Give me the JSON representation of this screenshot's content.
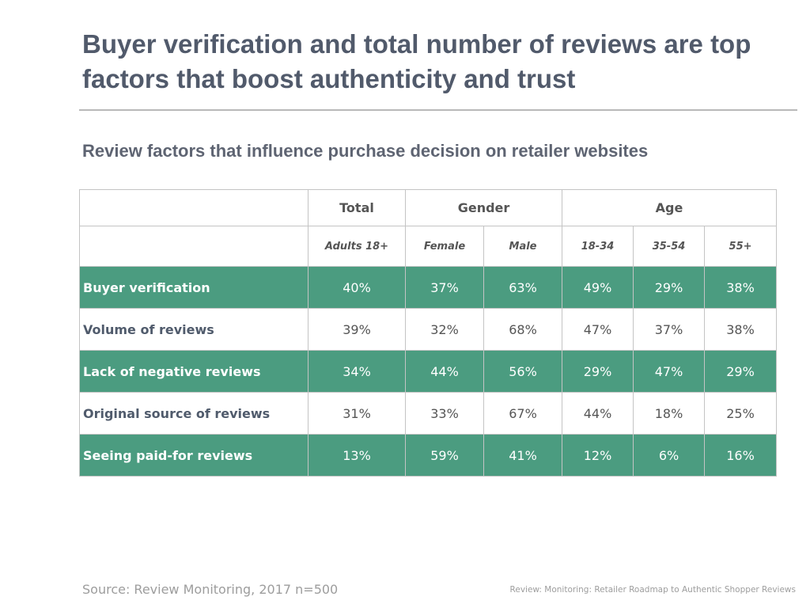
{
  "title": "Buyer verification and total number of reviews are top factors that boost authenticity and trust",
  "subtitle": "Review factors that influence purchase decision on retailer websites",
  "colors": {
    "title": "#515a6b",
    "row_shade": "#4b9c80",
    "border": "#c4c4c4",
    "footer_text": "#9d9d9d"
  },
  "table": {
    "groups": {
      "total": "Total",
      "gender": "Gender",
      "age": "Age"
    },
    "subheaders": [
      "Adults 18+",
      "Female",
      "Male",
      "18-34",
      "35-54",
      "55+"
    ],
    "rows": [
      {
        "label": "Buyer verification",
        "values": [
          "40%",
          "37%",
          "63%",
          "49%",
          "29%",
          "38%"
        ],
        "shaded": true
      },
      {
        "label": "Volume of reviews",
        "values": [
          "39%",
          "32%",
          "68%",
          "47%",
          "37%",
          "38%"
        ],
        "shaded": false
      },
      {
        "label": "Lack of negative reviews",
        "values": [
          "34%",
          "44%",
          "56%",
          "29%",
          "47%",
          "29%"
        ],
        "shaded": true
      },
      {
        "label": "Original source of reviews",
        "values": [
          "31%",
          "33%",
          "67%",
          "44%",
          "18%",
          "25%"
        ],
        "shaded": false
      },
      {
        "label": "Seeing paid-for reviews",
        "values": [
          "13%",
          "59%",
          "41%",
          "12%",
          "6%",
          "16%"
        ],
        "shaded": true
      }
    ]
  },
  "chart_data": {
    "type": "table",
    "title": "Review factors that influence purchase decision on retailer websites",
    "column_groups": [
      {
        "name": "Total",
        "columns": [
          "Adults 18+"
        ]
      },
      {
        "name": "Gender",
        "columns": [
          "Female",
          "Male"
        ]
      },
      {
        "name": "Age",
        "columns": [
          "18-34",
          "35-54",
          "55+"
        ]
      }
    ],
    "columns": [
      "Adults 18+",
      "Female",
      "Male",
      "18-34",
      "35-54",
      "55+"
    ],
    "rows": [
      "Buyer verification",
      "Volume of reviews",
      "Lack of negative reviews",
      "Original source of reviews",
      "Seeing paid-for reviews"
    ],
    "values": [
      [
        40,
        37,
        63,
        49,
        29,
        38
      ],
      [
        39,
        32,
        68,
        47,
        37,
        38
      ],
      [
        34,
        44,
        56,
        29,
        47,
        29
      ],
      [
        31,
        33,
        67,
        44,
        18,
        25
      ],
      [
        13,
        59,
        41,
        12,
        6,
        16
      ]
    ],
    "unit": "%"
  },
  "footer": {
    "source": "Source: Review Monitoring, 2017 n=500",
    "citation": "Review: Monitoring: Retailer Roadmap to Authentic Shopper Reviews"
  }
}
